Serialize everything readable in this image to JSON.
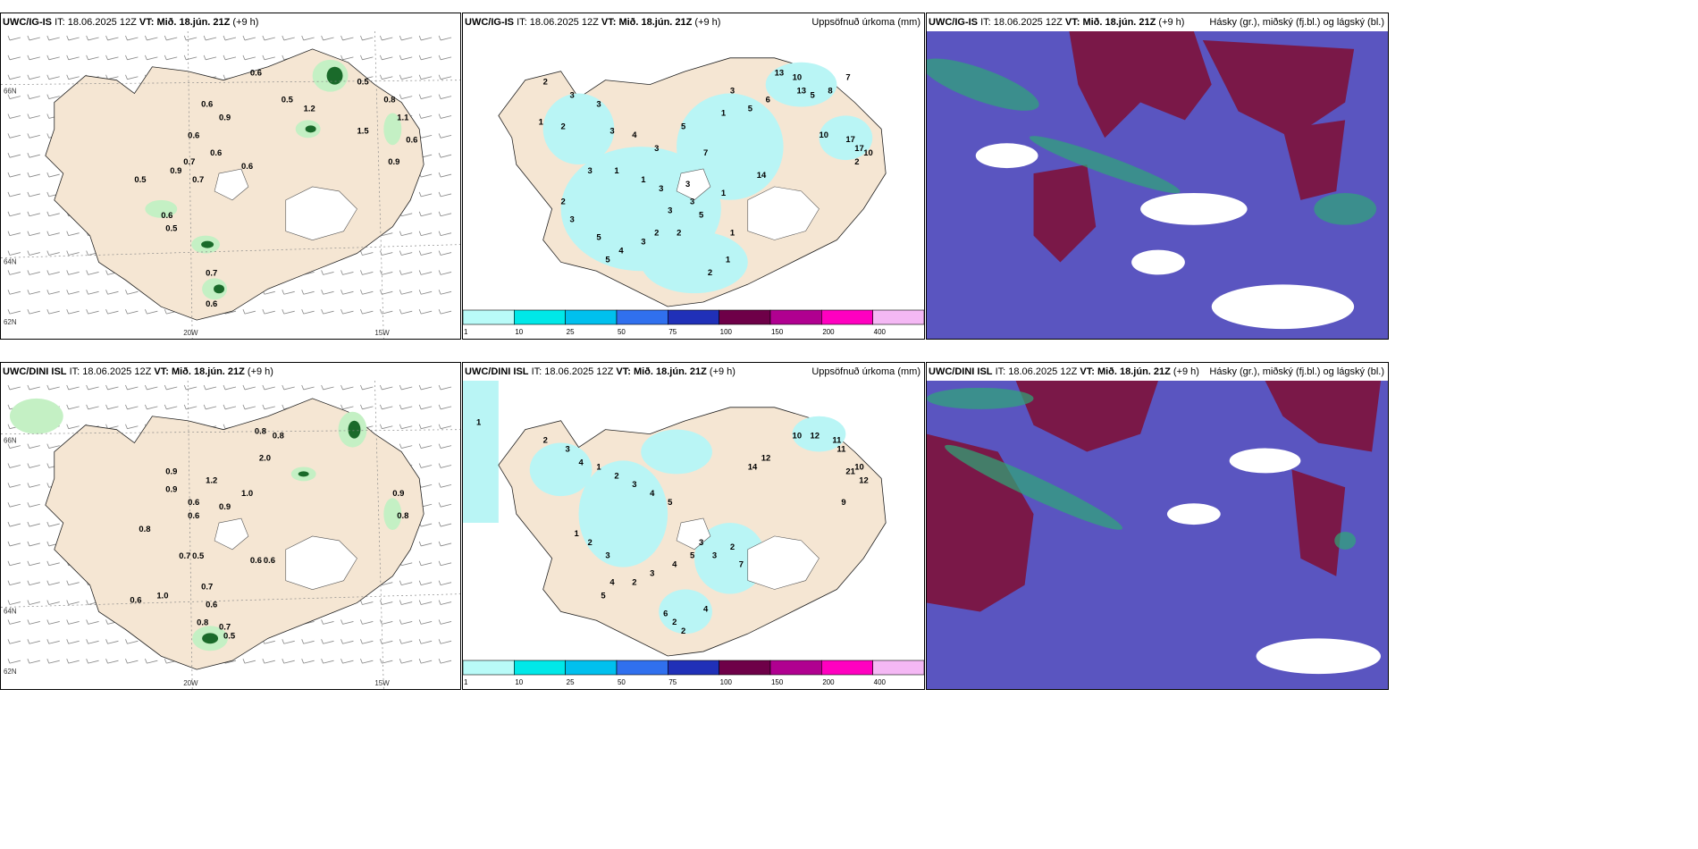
{
  "rows": [
    {
      "model": "UWC/IG-IS",
      "it_label": "IT:",
      "it": "18.06.2025 12Z",
      "vt_label": "VT:",
      "vt": "Mið. 18.jún. 21Z",
      "lead": "(+9 h)"
    },
    {
      "model": "UWC/DINI ISL",
      "it_label": "IT:",
      "it": "18.06.2025 12Z",
      "vt_label": "VT:",
      "vt": "Mið. 18.jún. 21Z",
      "lead": "(+9 h)"
    }
  ],
  "precip_title": "Uppsöfnuð úrkoma (mm)",
  "cloud_title": "Hásky (gr.), miðský (fj.bl.) og lágský (bl.)",
  "axis_labels": {
    "lat66": "66N",
    "lat64": "64N",
    "lat62": "62N",
    "lon20": "20W",
    "lon15": "15W"
  },
  "colorbar": {
    "ticks": [
      "1",
      "10",
      "25",
      "50",
      "75",
      "100",
      "150",
      "200",
      "400"
    ],
    "colors": [
      "#b9fbf8",
      "#00e8e8",
      "#00c0ee",
      "#3070ee",
      "#2030b8",
      "#6e0048",
      "#b00090",
      "#ff00c0",
      "#f4b8f4"
    ]
  },
  "colors": {
    "land": "#f5e6d3",
    "sea": "#ffffff",
    "precip_light": "#b9f5f5",
    "green_light": "#c4f0c4",
    "green_dark": "#1a6a2a",
    "cloud_low": "#5a55c0",
    "cloud_high": "#7a1848"
  },
  "panel_values": {
    "wind_rain_top": [
      "0.6",
      "0.5",
      "1.2",
      "0.5",
      "0.8",
      "0.6",
      "0.9",
      "0.6",
      "0.7",
      "0.6",
      "0.9",
      "0.6",
      "0.7",
      "0.5",
      "0.6",
      "0.5",
      "0.7",
      "0.6",
      "0.9",
      "1.5",
      "1.1",
      "0.6"
    ],
    "wind_rain_bottom": [
      "0.8",
      "0.8",
      "2.0",
      "1.2",
      "1.0",
      "0.9",
      "0.9",
      "0.6",
      "0.6",
      "0.9",
      "0.8",
      "0.7",
      "0.5",
      "0.6",
      "0.6",
      "1.0",
      "0.7",
      "0.6",
      "0.6",
      "0.8",
      "0.7",
      "0.5",
      "0.9",
      "0.8"
    ],
    "precip_top": [
      "2",
      "3",
      "3",
      "1",
      "2",
      "3",
      "4",
      "3",
      "5",
      "7",
      "1",
      "3",
      "5",
      "6",
      "13",
      "10",
      "13",
      "5",
      "8",
      "7",
      "3",
      "3",
      "1",
      "14",
      "10",
      "17",
      "17",
      "10",
      "2",
      "1",
      "1",
      "2",
      "5",
      "3",
      "2",
      "3",
      "4",
      "5",
      "5",
      "3",
      "2",
      "3",
      "1",
      "1",
      "3",
      "2"
    ],
    "precip_bottom": [
      "1",
      "2",
      "3",
      "4",
      "1",
      "2",
      "3",
      "4",
      "5",
      "12",
      "10",
      "12",
      "9",
      "11",
      "21",
      "10",
      "12",
      "14",
      "11",
      "4",
      "5",
      "2",
      "3",
      "4",
      "5",
      "3",
      "3",
      "2",
      "7",
      "1",
      "2",
      "3",
      "6",
      "2",
      "2",
      "4"
    ]
  }
}
